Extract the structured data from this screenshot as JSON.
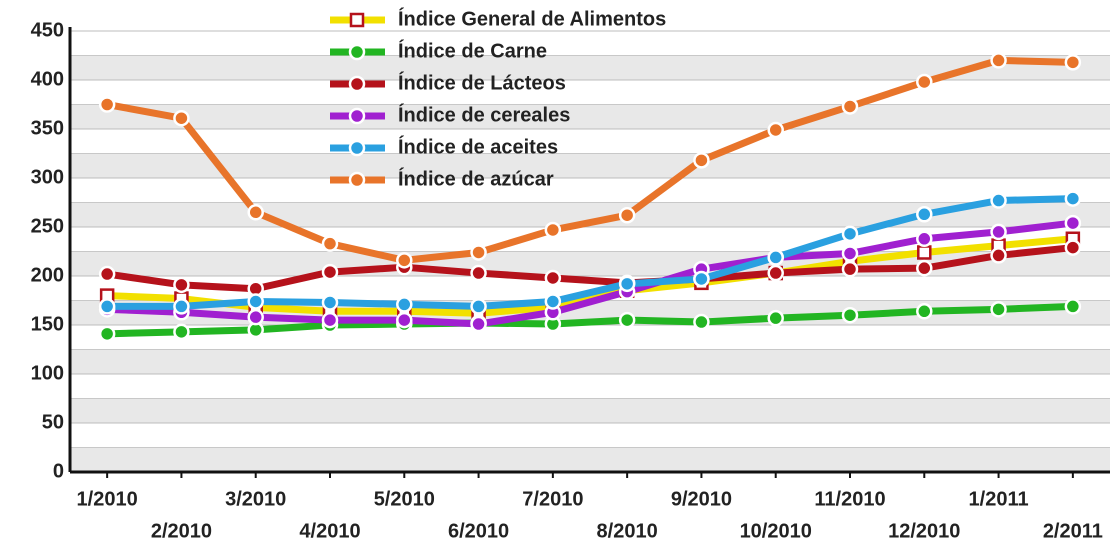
{
  "chart_data": {
    "type": "line",
    "categories": [
      "1/2010",
      "2/2010",
      "3/2010",
      "4/2010",
      "5/2010",
      "6/2010",
      "7/2010",
      "8/2010",
      "9/2010",
      "10/2010",
      "11/2010",
      "12/2010",
      "1/2011",
      "2/2011"
    ],
    "series": [
      {
        "name": "Índice General de Alimentos",
        "color": "#f2e000",
        "values": [
          180,
          177,
          168,
          164,
          164,
          162,
          168,
          185,
          193,
          203,
          215,
          224,
          231,
          238
        ]
      },
      {
        "name": "Índice de Carne",
        "color": "#22b522",
        "values": [
          141,
          143,
          145,
          150,
          151,
          152,
          151,
          155,
          153,
          157,
          160,
          164,
          166,
          169
        ]
      },
      {
        "name": "Índice de Lácteos",
        "color": "#b5121b",
        "values": [
          202,
          191,
          187,
          204,
          209,
          203,
          198,
          193,
          197,
          203,
          207,
          208,
          221,
          229
        ]
      },
      {
        "name": "Índice de cereales",
        "color": "#a020d0",
        "values": [
          166,
          163,
          158,
          155,
          155,
          151,
          163,
          184,
          207,
          219,
          223,
          238,
          245,
          254
        ]
      },
      {
        "name": "Índice de aceites",
        "color": "#2aa0e0",
        "values": [
          169,
          169,
          174,
          173,
          171,
          169,
          174,
          192,
          197,
          219,
          243,
          263,
          277,
          279
        ]
      },
      {
        "name": "Índice de azúcar",
        "color": "#e8742a",
        "values": [
          375,
          361,
          265,
          233,
          216,
          224,
          247,
          262,
          318,
          349,
          373,
          398,
          420,
          418
        ]
      }
    ],
    "ylim": [
      0,
      450
    ],
    "yticks": [
      0,
      50,
      100,
      150,
      200,
      250,
      300,
      350,
      400,
      450
    ],
    "grid": true
  }
}
